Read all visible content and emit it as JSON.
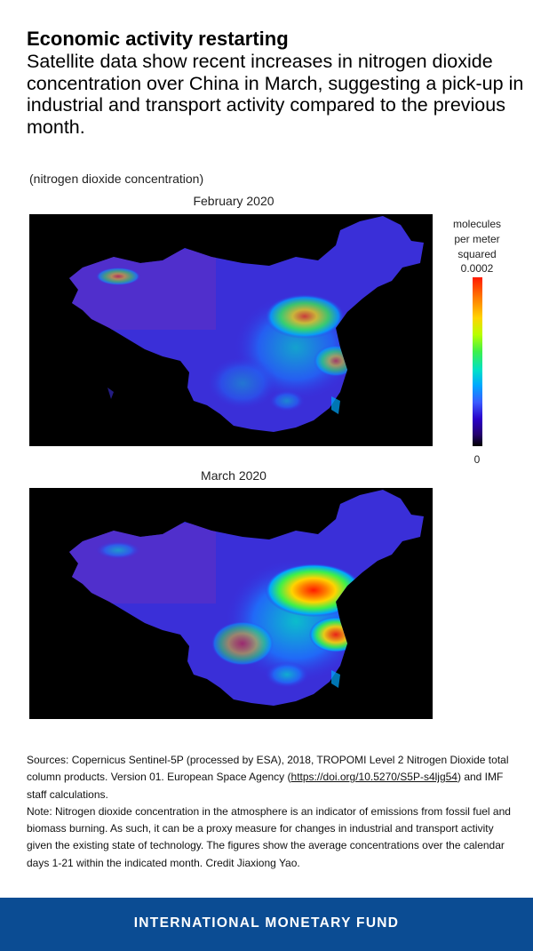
{
  "header": {
    "title": "Economic activity restarting",
    "subtitle": "Satellite data show recent increases in nitrogen dioxide concentration over China in March, suggesting a pick-up in industrial and transport activity compared to the previous month."
  },
  "figure": {
    "unit_label": "(nitrogen dioxide concentration)",
    "maps": [
      {
        "title": "February 2020",
        "hotspot_intensity": 0.55
      },
      {
        "title": "March 2020",
        "hotspot_intensity": 1.0
      }
    ],
    "legend": {
      "title": "molecules per meter squared",
      "max_label": "0.0002",
      "min_label": "0",
      "colors": [
        "#ff1a00",
        "#ff7a00",
        "#ffd400",
        "#3df04a",
        "#00e0c8",
        "#00a8ff",
        "#3a5bff",
        "#2a00c8",
        "#000000"
      ]
    }
  },
  "notes": {
    "sources_prefix": "Sources: Copernicus Sentinel-5P (processed by ESA), 2018, TROPOMI Level 2 Nitrogen Dioxide total column products. Version 01. European Space Agency (",
    "sources_link": "https://doi.org/10.5270/S5P-s4ljg54",
    "sources_suffix": ") and IMF staff calculations.",
    "note": "Note: Nitrogen dioxide concentration in the atmosphere is an indicator of emissions from fossil fuel and biomass burning. As such, it can be a proxy measure for changes in industrial and transport activity given the existing state of technology. The figures show the average concentrations over the calendar days 1-21 within the indicated month. Credit Jiaxiong Yao."
  },
  "footer": {
    "org_name": "INTERNATIONAL MONETARY FUND"
  }
}
